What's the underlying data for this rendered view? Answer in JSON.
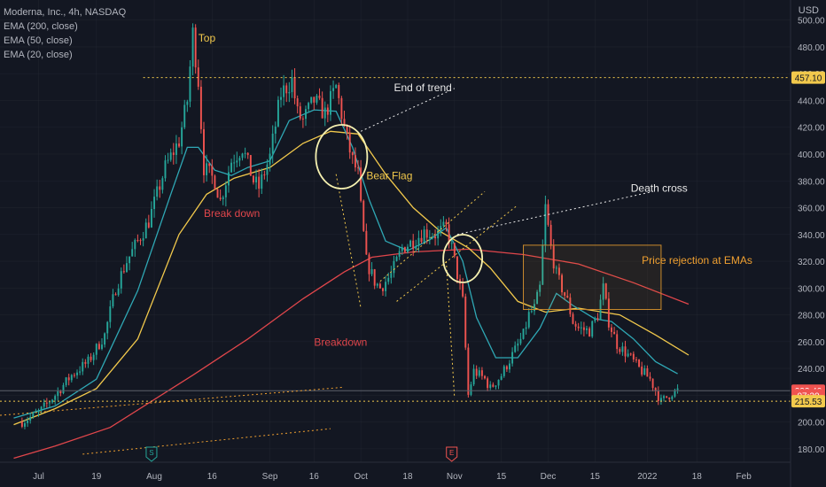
{
  "header": {
    "symbol_line": "Moderna, Inc., 4h, NASDAQ",
    "indicators": [
      "EMA (200, close)",
      "EMA (50, close)",
      "EMA (20, close)"
    ],
    "currency": "USD"
  },
  "colors": {
    "background": "#131722",
    "grid": "#2a2e39",
    "axis_text": "#b2b5be",
    "bull": "#26a69a",
    "bear": "#ef5350",
    "ema200": "#e0464b",
    "ema50": "#f2c94c",
    "ema20": "#2fa8b5",
    "level_line": "#f2c94c",
    "annotation_white": "#e8e8e8",
    "annotation_yellow": "#f2c94c",
    "annotation_red": "#e0464b",
    "annotation_orange": "#f0a030"
  },
  "chart_data": {
    "type": "candlestick",
    "title": "Moderna, Inc., 4h, NASDAQ",
    "y_ticks": [
      180,
      200,
      220,
      240,
      260,
      280,
      300,
      320,
      340,
      360,
      380,
      400,
      420,
      440,
      460,
      480,
      500
    ],
    "ylim": [
      170,
      515
    ],
    "x_ticks": [
      {
        "label": "Jul",
        "t": 4
      },
      {
        "label": "19",
        "t": 25
      },
      {
        "label": "Aug",
        "t": 46
      },
      {
        "label": "16",
        "t": 67
      },
      {
        "label": "Sep",
        "t": 88
      },
      {
        "label": "16",
        "t": 104
      },
      {
        "label": "Oct",
        "t": 121
      },
      {
        "label": "18",
        "t": 138
      },
      {
        "label": "Nov",
        "t": 155
      },
      {
        "label": "15",
        "t": 172
      },
      {
        "label": "Dec",
        "t": 189
      },
      {
        "label": "15",
        "t": 206
      },
      {
        "label": "2022",
        "t": 225
      },
      {
        "label": "18",
        "t": 243
      },
      {
        "label": "Feb",
        "t": 260
      }
    ],
    "xlim": [
      -10,
      277
    ],
    "ohlc_anchors": [
      {
        "t": -2,
        "c": 200
      },
      {
        "t": 4,
        "c": 207
      },
      {
        "t": 10,
        "c": 220
      },
      {
        "t": 16,
        "c": 235
      },
      {
        "t": 22,
        "c": 245
      },
      {
        "t": 28,
        "c": 265
      },
      {
        "t": 32,
        "c": 300
      },
      {
        "t": 36,
        "c": 320
      },
      {
        "t": 40,
        "c": 335
      },
      {
        "t": 44,
        "c": 350
      },
      {
        "t": 50,
        "c": 390
      },
      {
        "t": 55,
        "c": 410
      },
      {
        "t": 58,
        "c": 440
      },
      {
        "t": 60,
        "c": 490
      },
      {
        "t": 62,
        "c": 455
      },
      {
        "t": 64,
        "c": 390
      },
      {
        "t": 68,
        "c": 380
      },
      {
        "t": 70,
        "c": 365
      },
      {
        "t": 74,
        "c": 395
      },
      {
        "t": 78,
        "c": 405
      },
      {
        "t": 82,
        "c": 380
      },
      {
        "t": 84,
        "c": 375
      },
      {
        "t": 88,
        "c": 398
      },
      {
        "t": 92,
        "c": 445
      },
      {
        "t": 96,
        "c": 455
      },
      {
        "t": 98,
        "c": 430
      },
      {
        "t": 100,
        "c": 425
      },
      {
        "t": 104,
        "c": 440
      },
      {
        "t": 108,
        "c": 430
      },
      {
        "t": 112,
        "c": 450
      },
      {
        "t": 114,
        "c": 430
      },
      {
        "t": 116,
        "c": 410
      },
      {
        "t": 118,
        "c": 395
      },
      {
        "t": 120,
        "c": 385
      },
      {
        "t": 121,
        "c": 360
      },
      {
        "t": 123,
        "c": 320
      },
      {
        "t": 126,
        "c": 305
      },
      {
        "t": 128,
        "c": 300
      },
      {
        "t": 132,
        "c": 310
      },
      {
        "t": 136,
        "c": 330
      },
      {
        "t": 140,
        "c": 335
      },
      {
        "t": 144,
        "c": 342
      },
      {
        "t": 148,
        "c": 340
      },
      {
        "t": 152,
        "c": 345
      },
      {
        "t": 154,
        "c": 330
      },
      {
        "t": 156,
        "c": 310
      },
      {
        "t": 158,
        "c": 290
      },
      {
        "t": 160,
        "c": 220
      },
      {
        "t": 162,
        "c": 238
      },
      {
        "t": 166,
        "c": 232
      },
      {
        "t": 168,
        "c": 225
      },
      {
        "t": 172,
        "c": 235
      },
      {
        "t": 176,
        "c": 250
      },
      {
        "t": 180,
        "c": 265
      },
      {
        "t": 182,
        "c": 280
      },
      {
        "t": 184,
        "c": 285
      },
      {
        "t": 186,
        "c": 300
      },
      {
        "t": 188,
        "c": 360
      },
      {
        "t": 190,
        "c": 330
      },
      {
        "t": 192,
        "c": 310
      },
      {
        "t": 194,
        "c": 300
      },
      {
        "t": 196,
        "c": 290
      },
      {
        "t": 198,
        "c": 275
      },
      {
        "t": 200,
        "c": 270
      },
      {
        "t": 204,
        "c": 268
      },
      {
        "t": 207,
        "c": 280
      },
      {
        "t": 209,
        "c": 300
      },
      {
        "t": 211,
        "c": 275
      },
      {
        "t": 214,
        "c": 258
      },
      {
        "t": 218,
        "c": 250
      },
      {
        "t": 222,
        "c": 240
      },
      {
        "t": 226,
        "c": 232
      },
      {
        "t": 230,
        "c": 215
      },
      {
        "t": 234,
        "c": 222
      },
      {
        "t": 236,
        "c": 223.4
      }
    ],
    "series": [
      {
        "name": "EMA (200, close)",
        "color": "#e0464b",
        "points": [
          [
            -5,
            173
          ],
          [
            10,
            182
          ],
          [
            30,
            196
          ],
          [
            60,
            235
          ],
          [
            80,
            262
          ],
          [
            100,
            292
          ],
          [
            115,
            312
          ],
          [
            125,
            323
          ],
          [
            140,
            327
          ],
          [
            160,
            329
          ],
          [
            180,
            325
          ],
          [
            200,
            318
          ],
          [
            220,
            304
          ],
          [
            240,
            288
          ]
        ]
      },
      {
        "name": "EMA (50, close)",
        "color": "#f2c94c",
        "points": [
          [
            -5,
            198
          ],
          [
            10,
            210
          ],
          [
            25,
            225
          ],
          [
            40,
            262
          ],
          [
            55,
            340
          ],
          [
            65,
            370
          ],
          [
            75,
            382
          ],
          [
            88,
            390
          ],
          [
            100,
            408
          ],
          [
            110,
            417
          ],
          [
            120,
            415
          ],
          [
            130,
            385
          ],
          [
            140,
            360
          ],
          [
            150,
            342
          ],
          [
            160,
            330
          ],
          [
            168,
            315
          ],
          [
            178,
            290
          ],
          [
            188,
            282
          ],
          [
            200,
            285
          ],
          [
            215,
            280
          ],
          [
            228,
            265
          ],
          [
            240,
            250
          ]
        ]
      },
      {
        "name": "EMA (20, close)",
        "color": "#2fa8b5",
        "points": [
          [
            -5,
            203
          ],
          [
            10,
            212
          ],
          [
            25,
            232
          ],
          [
            40,
            298
          ],
          [
            52,
            370
          ],
          [
            58,
            405
          ],
          [
            62,
            405
          ],
          [
            68,
            388
          ],
          [
            74,
            384
          ],
          [
            80,
            390
          ],
          [
            88,
            395
          ],
          [
            95,
            425
          ],
          [
            104,
            433
          ],
          [
            112,
            432
          ],
          [
            118,
            405
          ],
          [
            124,
            366
          ],
          [
            130,
            335
          ],
          [
            138,
            328
          ],
          [
            146,
            336
          ],
          [
            152,
            345
          ],
          [
            158,
            320
          ],
          [
            163,
            278
          ],
          [
            170,
            248
          ],
          [
            178,
            248
          ],
          [
            186,
            270
          ],
          [
            192,
            296
          ],
          [
            198,
            287
          ],
          [
            206,
            277
          ],
          [
            212,
            275
          ],
          [
            220,
            262
          ],
          [
            228,
            245
          ],
          [
            236,
            236
          ]
        ]
      }
    ],
    "horizontal_levels": [
      {
        "value": 457.1,
        "label": "457.10",
        "style": "dotted",
        "from_t": 42
      },
      {
        "value": 215.53,
        "label": "215.53",
        "style": "dotted",
        "from_t": -10
      },
      {
        "value": 223.4,
        "label": "223.40",
        "style": "solid-thin",
        "from_t": -10
      }
    ],
    "price_labels": [
      {
        "value": 457.1,
        "text": "457.10",
        "bg": "#f2c94c",
        "fg": "#131722"
      },
      {
        "value": 223.4,
        "text": "223.40",
        "bg": "#ef5350",
        "fg": "#ffffff"
      },
      {
        "value": 220,
        "text": "07:20",
        "bg": "#ef5350",
        "fg": "#ffffff"
      },
      {
        "value": 215.53,
        "text": "215.53",
        "bg": "#f2c94c",
        "fg": "#131722"
      }
    ],
    "annotations": [
      {
        "text": "Top",
        "t": 62,
        "y": 484,
        "color": "#f2c94c"
      },
      {
        "text": "End of trend",
        "t": 133,
        "y": 447,
        "color": "#e8e8e8"
      },
      {
        "text": "Bear Flag",
        "t": 123,
        "y": 381,
        "color": "#f2c94c"
      },
      {
        "text": "Death cross",
        "t": 219,
        "y": 372,
        "color": "#e8e8e8"
      },
      {
        "text": "Break down",
        "t": 64,
        "y": 353,
        "color": "#e0464b"
      },
      {
        "text": "Price rejection at EMAs",
        "t": 223,
        "y": 318,
        "color": "#f0a030"
      },
      {
        "text": "Breakdown",
        "t": 104,
        "y": 257,
        "color": "#e0464b"
      }
    ],
    "event_markers": [
      {
        "t": 45,
        "letter": "S"
      },
      {
        "t": 154,
        "letter": "E"
      }
    ]
  }
}
